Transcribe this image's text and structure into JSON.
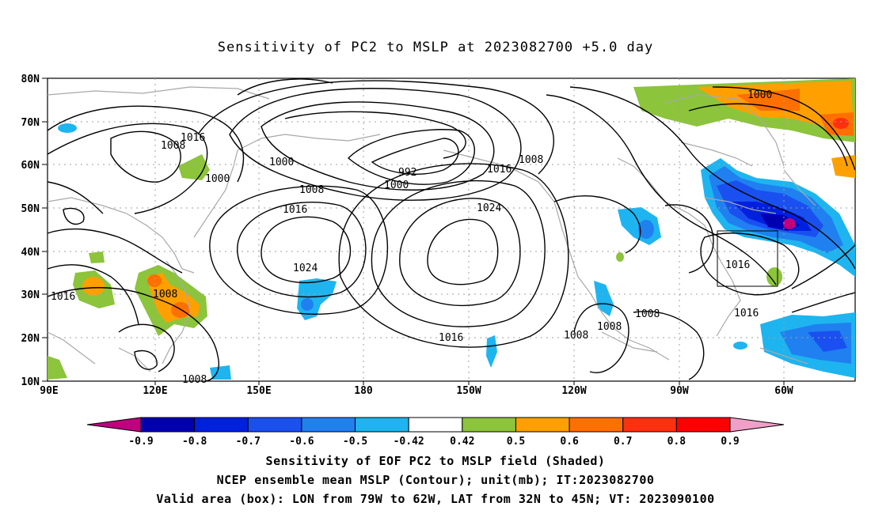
{
  "title": "Sensitivity of PC2 to MSLP at 2023082700 +5.0 day",
  "map": {
    "lat_labels": [
      "80N",
      "70N",
      "60N",
      "50N",
      "40N",
      "30N",
      "20N",
      "10N"
    ],
    "lon_labels": [
      "90E",
      "120E",
      "150E",
      "180",
      "150W",
      "120W",
      "90W",
      "60W"
    ],
    "grid": true,
    "contour_labels": [
      "1016",
      "1008",
      "1000",
      "1000",
      "992",
      "1000",
      "1008",
      "1016",
      "1008",
      "1016",
      "1024",
      "1024",
      "1016",
      "1008",
      "1016",
      "1008",
      "1008",
      "1008",
      "1016",
      "1008",
      "1000"
    ],
    "box": {
      "lon_from": "79W",
      "lon_to": "62W",
      "lat_from": "32N",
      "lat_to": "45N"
    }
  },
  "colorbar": {
    "labels": [
      "-0.9",
      "-0.8",
      "-0.7",
      "-0.6",
      "-0.5",
      "-0.42",
      "0.42",
      "0.5",
      "0.6",
      "0.7",
      "0.8",
      "0.9"
    ],
    "colors": [
      "#c0007f",
      "#0000b0",
      "#0020e0",
      "#1a50f0",
      "#2080f0",
      "#1eb4f0",
      "#ffffff",
      "#8cc43c",
      "#ffa000",
      "#ff7000",
      "#ff3010",
      "#ff0000",
      "#f0a0c8"
    ]
  },
  "captions": {
    "line1": "Sensitivity of EOF PC2 to MSLP field (Shaded)",
    "line2": "NCEP ensemble mean MSLP (Contour); unit(mb); IT:2023082700",
    "line3": "Valid area (box): LON from 79W to 62W, LAT from 32N to 45N; VT: 2023090100"
  }
}
